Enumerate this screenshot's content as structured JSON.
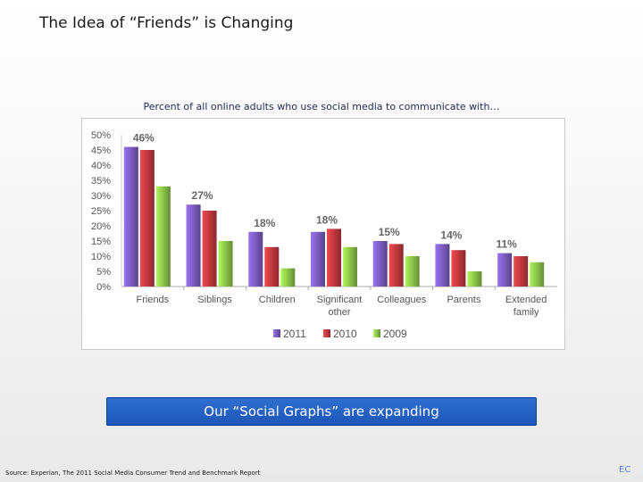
{
  "slide": {
    "title": "The Idea of “Friends” is Changing",
    "caption": "Percent of all online adults who use social media to communicate with…",
    "banner": "Our “Social Graphs” are expanding",
    "source": "Source: Experian, The 2011 Social Media Consumer Trend and Benchmark Report",
    "corner_mark": "EC"
  },
  "chart_data": {
    "type": "bar",
    "categories": [
      "Friends",
      "Siblings",
      "Children",
      "Significant other",
      "Colleagues",
      "Parents",
      "Extended family"
    ],
    "category_lines": [
      [
        "Friends"
      ],
      [
        "Siblings"
      ],
      [
        "Children"
      ],
      [
        "Significant",
        "other"
      ],
      [
        "Colleagues"
      ],
      [
        "Parents"
      ],
      [
        "Extended",
        "family"
      ]
    ],
    "series": [
      {
        "name": "2011",
        "color": "#7a5cbf",
        "values": [
          46,
          27,
          18,
          18,
          15,
          14,
          11
        ]
      },
      {
        "name": "2010",
        "color": "#c0393f",
        "values": [
          45,
          25,
          13,
          19,
          14,
          12,
          10
        ]
      },
      {
        "name": "2009",
        "color": "#8cc44a",
        "values": [
          33,
          15,
          6,
          13,
          10,
          5,
          8
        ]
      }
    ],
    "data_labels": [
      "46%",
      "27%",
      "18%",
      "18%",
      "15%",
      "14%",
      "11%"
    ],
    "y_ticks": [
      "0%",
      "5%",
      "10%",
      "15%",
      "20%",
      "25%",
      "30%",
      "35%",
      "40%",
      "45%",
      "50%"
    ],
    "ylim": [
      0,
      50
    ],
    "legend_position": "bottom",
    "grid": false
  }
}
